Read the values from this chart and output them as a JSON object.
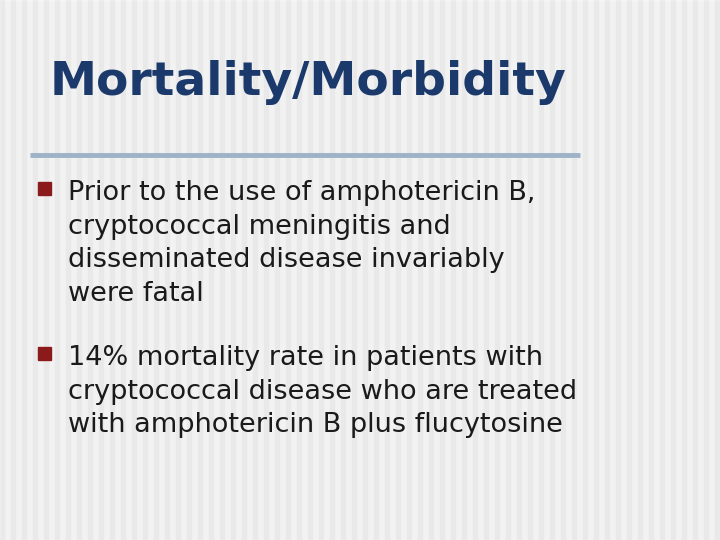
{
  "title": "Mortality/Morbidity",
  "title_color": "#1B3A6B",
  "title_fontsize": 34,
  "background_color": "#E8E8E8",
  "stripe_light_color": "#EBEBEB",
  "stripe_dark_color": "#D8D8D8",
  "separator_line_color": "#9EB3C8",
  "bullet_color": "#8B1A1A",
  "bullet_text_color": "#1A1A1A",
  "bullet_fontsize": 19.5,
  "bullets": [
    "Prior to the use of amphotericin B,\ncryptococcal meningitis and\ndisseminated disease invariably\nwere fatal",
    "14% mortality rate in patients with\ncryptococcal disease who are treated\nwith amphotericin B plus flucytosine"
  ],
  "figsize": [
    7.2,
    5.4
  ],
  "dpi": 100
}
